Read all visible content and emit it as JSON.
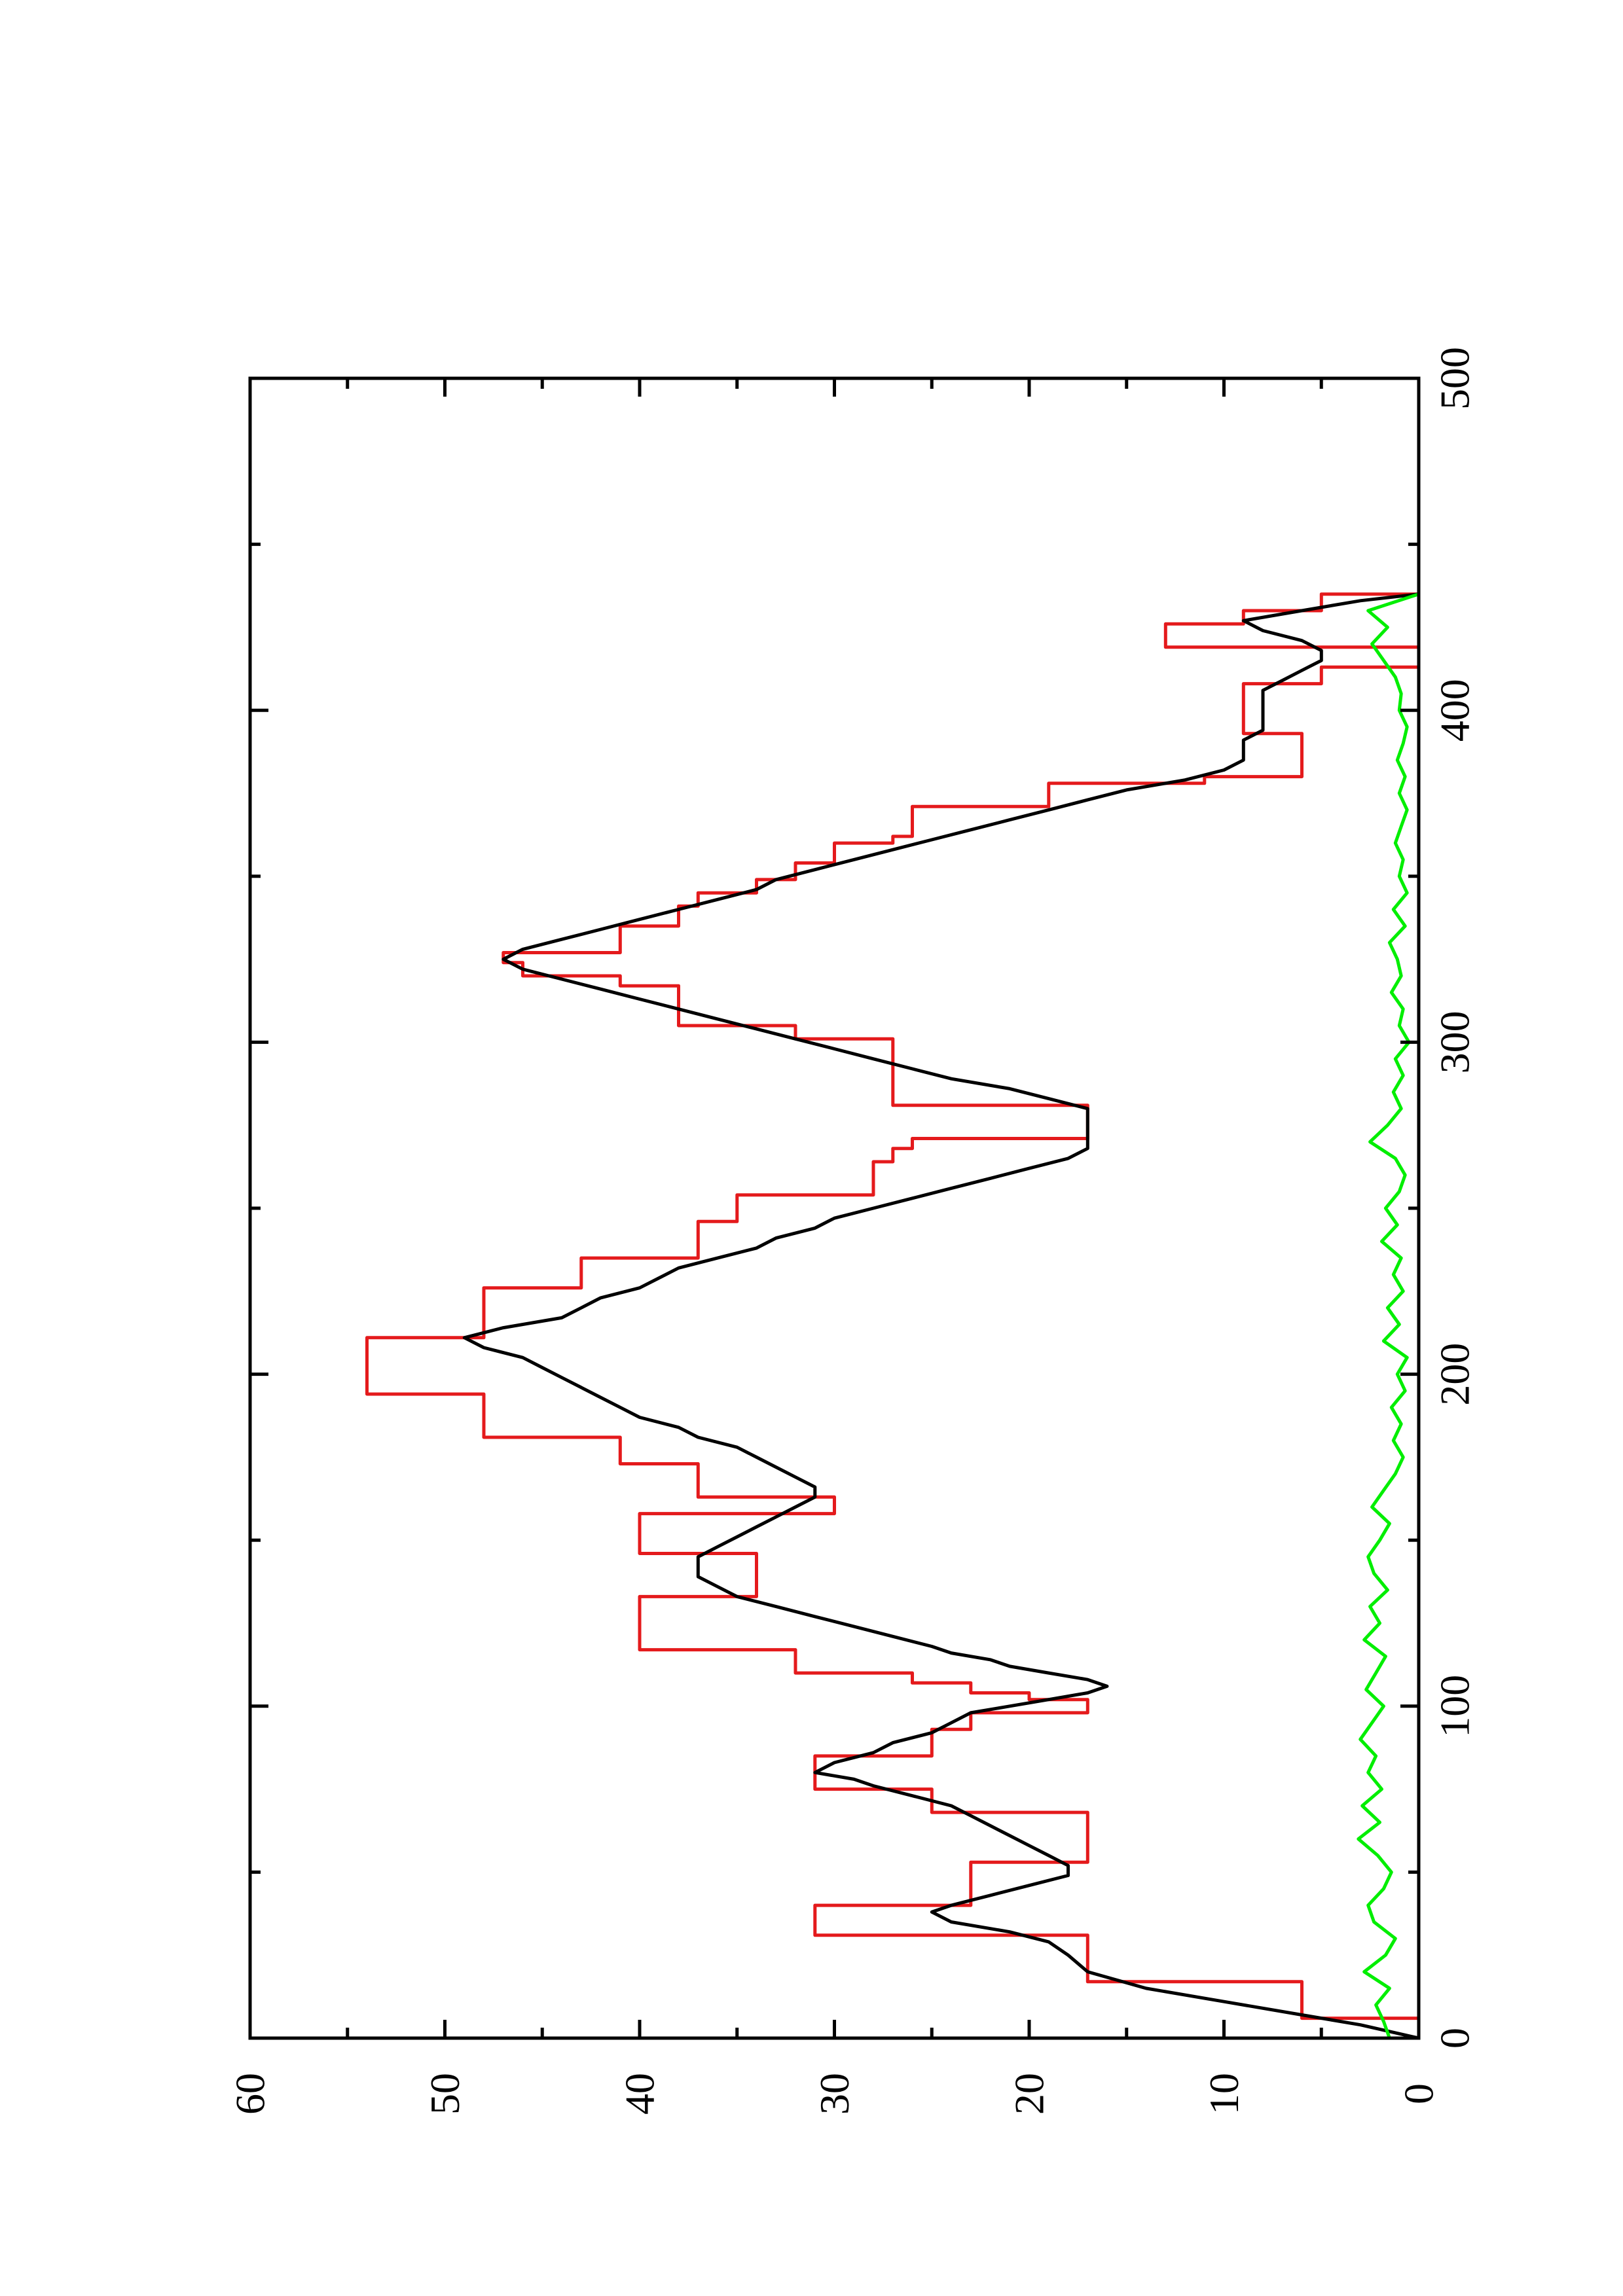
{
  "chart_data": {
    "type": "line",
    "title": "",
    "xlabel": "",
    "ylabel": "",
    "orientation": "rotated-90-ccw",
    "grid": false,
    "legend": "none",
    "xlim": [
      0,
      500
    ],
    "ylim": [
      0,
      60
    ],
    "x_ticks": [
      {
        "value": 0,
        "label": "0"
      },
      {
        "value": 100,
        "label": "100"
      },
      {
        "value": 200,
        "label": "200"
      },
      {
        "value": 300,
        "label": "300"
      },
      {
        "value": 400,
        "label": "400"
      },
      {
        "value": 500,
        "label": "500"
      }
    ],
    "x_minor_ticks": [
      50,
      150,
      250,
      350,
      450
    ],
    "y_ticks": [
      {
        "value": 0,
        "label": "0"
      },
      {
        "value": 10,
        "label": "10"
      },
      {
        "value": 20,
        "label": "20"
      },
      {
        "value": 30,
        "label": "30"
      },
      {
        "value": 40,
        "label": "40"
      },
      {
        "value": 50,
        "label": "50"
      },
      {
        "value": 60,
        "label": "60"
      }
    ],
    "y_minor_ticks": [
      5,
      15,
      25,
      35,
      45,
      55
    ],
    "series": [
      {
        "color": "#e41a1c",
        "shape": "step",
        "x": [
          0,
          6,
          17,
          31,
          40,
          47,
          53,
          60,
          68,
          75,
          85,
          93,
          98,
          102,
          104,
          107,
          110,
          117,
          133,
          140,
          146,
          152,
          158,
          163,
          170,
          173,
          181,
          187,
          194,
          202,
          211,
          218,
          226,
          235,
          246,
          254,
          264,
          268,
          271,
          273,
          281,
          289,
          301,
          305,
          317,
          320,
          324,
          327,
          335,
          341,
          345,
          349,
          354,
          360,
          362,
          371,
          378,
          380,
          384,
          393,
          399,
          408,
          413,
          419,
          426,
          430,
          435
        ],
        "y": [
          0,
          6,
          17,
          31,
          23,
          23,
          17,
          17,
          25,
          31,
          25,
          23,
          17,
          20,
          23,
          26,
          32,
          40,
          34,
          34,
          40,
          40,
          30,
          37,
          37,
          41,
          48,
          48,
          54,
          54,
          48,
          48,
          43,
          37,
          35,
          28,
          27,
          26,
          17,
          17,
          27,
          27,
          32,
          38,
          41,
          46,
          47,
          41,
          38,
          37,
          34,
          32,
          30,
          27,
          26,
          19,
          11,
          6,
          6,
          9,
          9,
          5,
          0,
          13,
          9,
          5,
          0
        ]
      },
      {
        "color": "#000000",
        "shape": "line",
        "x": [
          0,
          4,
          7,
          11,
          15,
          20,
          25,
          29,
          32,
          35,
          38,
          40,
          43,
          46,
          49,
          52,
          55,
          58,
          61,
          64,
          67,
          70,
          73,
          76,
          78,
          80,
          83,
          86,
          89,
          92,
          95,
          98,
          100,
          102,
          104,
          106,
          108,
          110,
          112,
          114,
          116,
          118,
          121,
          124,
          127,
          130,
          133,
          136,
          139,
          142,
          145,
          148,
          151,
          154,
          157,
          160,
          163,
          166,
          169,
          172,
          175,
          178,
          181,
          184,
          187,
          190,
          193,
          196,
          199,
          202,
          205,
          208,
          211,
          214,
          217,
          220,
          223,
          226,
          229,
          232,
          235,
          238,
          241,
          244,
          247,
          250,
          253,
          256,
          259,
          262,
          265,
          268,
          271,
          274,
          277,
          280,
          283,
          286,
          289,
          292,
          295,
          298,
          301,
          304,
          307,
          310,
          313,
          316,
          319,
          322,
          325,
          328,
          331,
          334,
          337,
          340,
          343,
          346,
          349,
          352,
          355,
          358,
          361,
          364,
          367,
          370,
          373,
          376,
          379,
          382,
          385,
          388,
          391,
          394,
          397,
          400,
          403,
          406,
          409,
          412,
          415,
          418,
          421,
          424,
          427,
          430,
          433,
          435
        ],
        "y": [
          0,
          3,
          6,
          10,
          14,
          17,
          18,
          19,
          21,
          24,
          25,
          24,
          22,
          20,
          18,
          18,
          19,
          20,
          21,
          22,
          23,
          24,
          26,
          28,
          29,
          31,
          30,
          28,
          27,
          25,
          24,
          23,
          21,
          19,
          17,
          16,
          17,
          19,
          21,
          22,
          24,
          25,
          27,
          29,
          31,
          33,
          35,
          36,
          37,
          37,
          37,
          36,
          35,
          34,
          33,
          32,
          31,
          31,
          32,
          33,
          34,
          35,
          37,
          38,
          40,
          41,
          42,
          43,
          44,
          45,
          46,
          48,
          49,
          47,
          44,
          43,
          42,
          40,
          39,
          38,
          36,
          34,
          33,
          31,
          30,
          28,
          26,
          24,
          22,
          20,
          18,
          17,
          17,
          17,
          17,
          17,
          19,
          21,
          24,
          26,
          28,
          30,
          32,
          34,
          36,
          38,
          40,
          42,
          44,
          46,
          47,
          46,
          44,
          42,
          40,
          38,
          36,
          34,
          33,
          31,
          29,
          27,
          25,
          23,
          21,
          19,
          17,
          15,
          12,
          10,
          9,
          9,
          9,
          8,
          8,
          8,
          8,
          8,
          7,
          6,
          5,
          5,
          6,
          8,
          9,
          6,
          3,
          0
        ]
      },
      {
        "color": "#00ee00",
        "shape": "line",
        "x": [
          0,
          5,
          10,
          15,
          20,
          25,
          30,
          35,
          40,
          45,
          50,
          55,
          60,
          65,
          70,
          75,
          80,
          85,
          90,
          95,
          100,
          105,
          110,
          115,
          120,
          125,
          130,
          135,
          140,
          145,
          150,
          155,
          160,
          165,
          170,
          175,
          180,
          185,
          190,
          195,
          200,
          205,
          210,
          215,
          220,
          225,
          230,
          235,
          240,
          245,
          250,
          255,
          260,
          265,
          270,
          275,
          280,
          285,
          290,
          295,
          300,
          305,
          310,
          315,
          320,
          325,
          330,
          335,
          340,
          345,
          350,
          355,
          360,
          365,
          370,
          375,
          380,
          385,
          390,
          395,
          400,
          405,
          410,
          415,
          420,
          425,
          430,
          435
        ],
        "y": [
          1.5,
          1.8,
          2.2,
          1.5,
          2.8,
          1.7,
          1.2,
          2.3,
          2.6,
          1.8,
          1.4,
          2.1,
          3.1,
          2.0,
          2.9,
          1.9,
          2.6,
          2.2,
          3.0,
          2.4,
          1.8,
          2.7,
          2.2,
          1.7,
          2.8,
          2.0,
          2.5,
          1.6,
          2.3,
          2.6,
          2.0,
          1.5,
          2.4,
          1.8,
          1.2,
          0.8,
          1.3,
          0.9,
          1.4,
          0.7,
          1.1,
          0.6,
          1.8,
          1.0,
          1.6,
          0.8,
          1.3,
          0.9,
          1.9,
          1.1,
          1.7,
          1.0,
          0.7,
          1.2,
          2.5,
          1.6,
          0.9,
          1.3,
          0.8,
          1.2,
          0.5,
          1.0,
          0.8,
          1.4,
          0.9,
          1.1,
          1.5,
          0.7,
          1.3,
          0.6,
          1.0,
          0.8,
          1.2,
          0.9,
          0.6,
          1.0,
          0.7,
          1.1,
          0.8,
          0.6,
          1.0,
          0.9,
          1.2,
          1.8,
          2.4,
          1.6,
          2.6,
          0.0
        ]
      }
    ]
  }
}
